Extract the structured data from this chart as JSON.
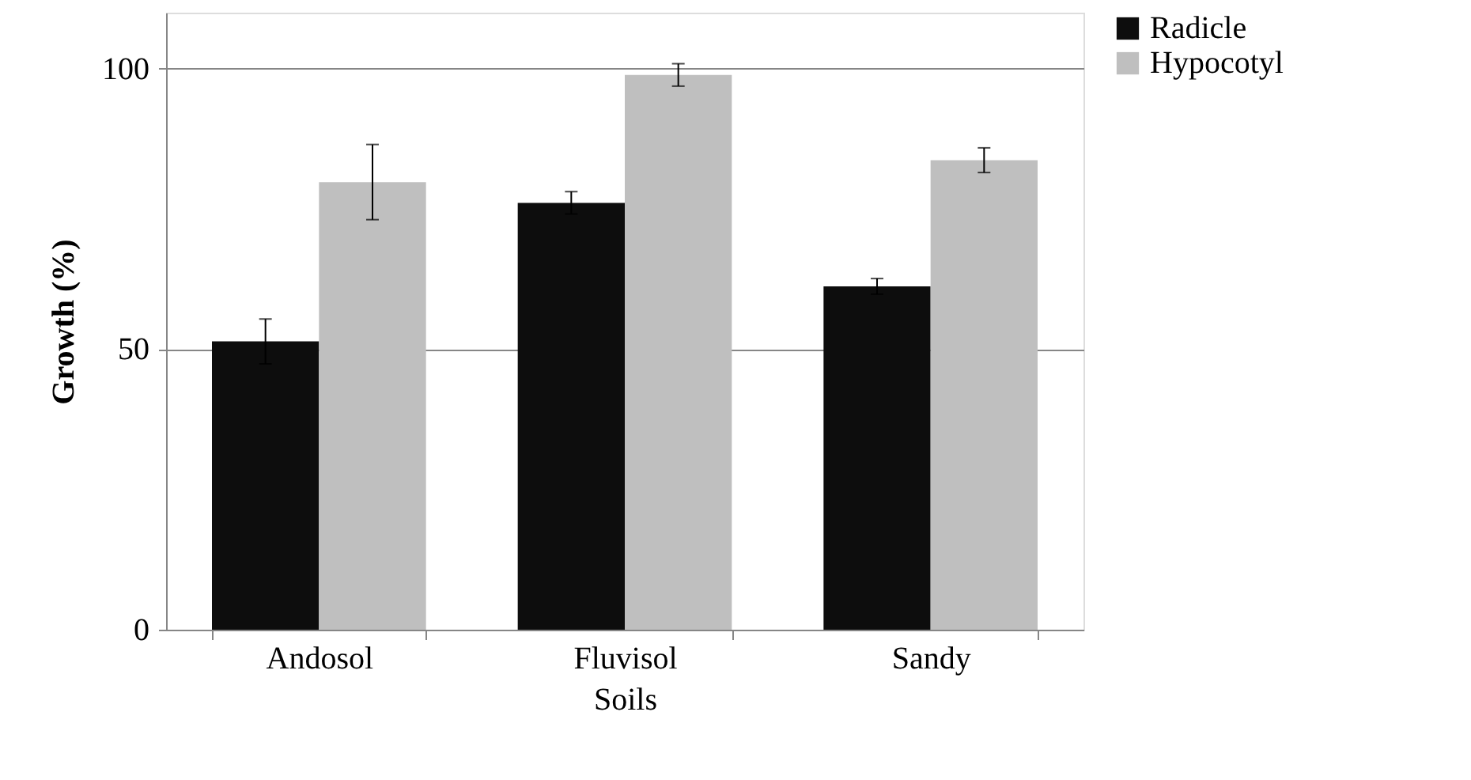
{
  "chart_data": {
    "type": "bar",
    "xlabel": "Soils",
    "ylabel": "Growth (%)",
    "categories": [
      "Andosol",
      "Fluvisol",
      "Sandy"
    ],
    "series": [
      {
        "name": "Radicle",
        "color": "#0d0d0d",
        "values": [
          51.4,
          76.1,
          61.2
        ],
        "errors": [
          4,
          2,
          1.4
        ]
      },
      {
        "name": "Hypocotyl",
        "color": "#bfbfbf",
        "values": [
          79.8,
          98.9,
          83.7
        ],
        "errors": [
          6.7,
          2,
          2.2
        ]
      }
    ],
    "ylim": [
      0,
      110
    ],
    "yticks": [
      0,
      50,
      100
    ],
    "grid": "y",
    "legend": "right"
  }
}
